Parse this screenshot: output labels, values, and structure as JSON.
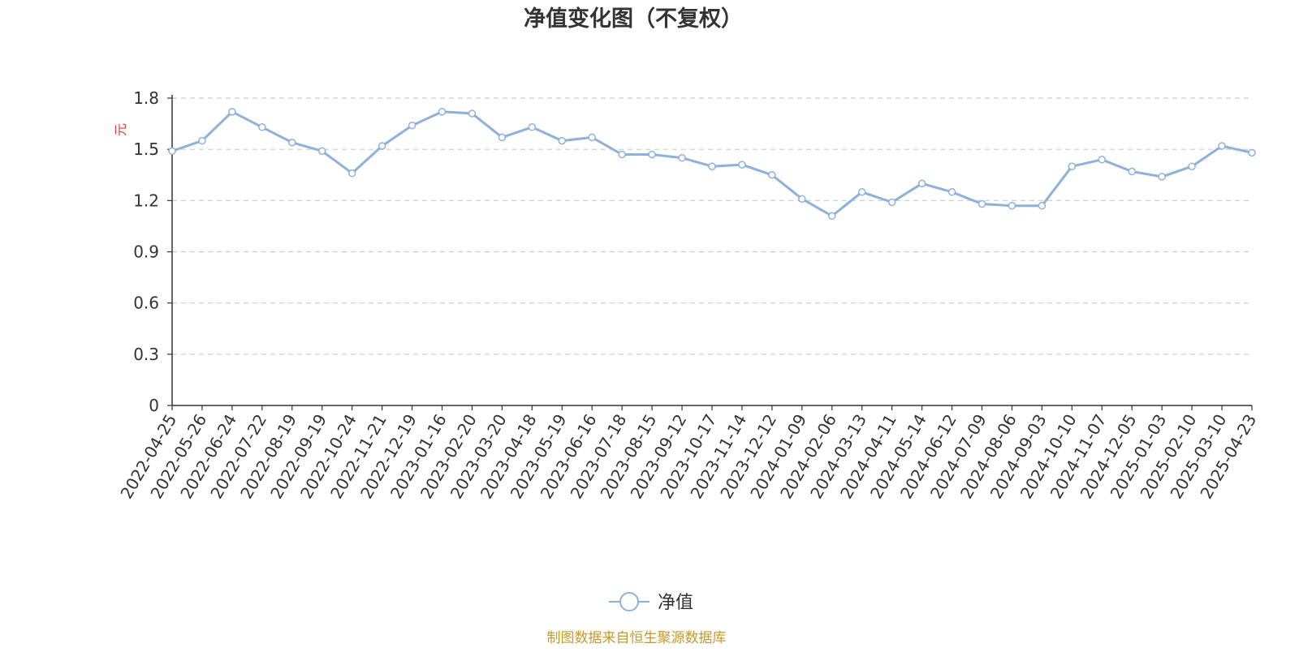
{
  "chart_data": {
    "type": "line",
    "title": "净值变化图（不复权）",
    "ylabel": "元",
    "xlabel": "",
    "ylim": [
      0,
      1.8
    ],
    "yticks": [
      0,
      0.3,
      0.6,
      0.9,
      1.2,
      1.5,
      1.8
    ],
    "ytick_labels": [
      "0",
      "0.3",
      "0.6",
      "0.9",
      "1.2",
      "1.5",
      "1.8"
    ],
    "grid": "horizontal dashed",
    "legend_position": "bottom-center",
    "categories": [
      "2022-04-25",
      "2022-05-26",
      "2022-06-24",
      "2022-07-22",
      "2022-08-19",
      "2022-09-19",
      "2022-10-24",
      "2022-11-21",
      "2022-12-19",
      "2023-01-16",
      "2023-02-20",
      "2023-03-20",
      "2023-04-18",
      "2023-05-19",
      "2023-06-16",
      "2023-07-18",
      "2023-08-15",
      "2023-09-12",
      "2023-10-17",
      "2023-11-14",
      "2023-12-12",
      "2024-01-09",
      "2024-02-06",
      "2024-03-13",
      "2024-04-11",
      "2024-05-14",
      "2024-06-12",
      "2024-07-09",
      "2024-08-06",
      "2024-09-03",
      "2024-10-10",
      "2024-11-07",
      "2024-12-05",
      "2025-01-03",
      "2025-02-10",
      "2025-03-10",
      "2025-04-23"
    ],
    "series": [
      {
        "name": "净值",
        "color": "#8eb0dc",
        "values": [
          1.49,
          1.55,
          1.72,
          1.63,
          1.54,
          1.49,
          1.36,
          1.52,
          1.64,
          1.72,
          1.71,
          1.57,
          1.63,
          1.55,
          1.57,
          1.47,
          1.47,
          1.45,
          1.4,
          1.41,
          1.35,
          1.21,
          1.11,
          1.25,
          1.19,
          1.3,
          1.25,
          1.18,
          1.17,
          1.17,
          1.4,
          1.44,
          1.37,
          1.34,
          1.4,
          1.52,
          1.48
        ]
      }
    ],
    "legend": [
      {
        "label": "净值",
        "color": "#8eb0dc"
      }
    ],
    "footer": "制图数据来自恒生聚源数据库"
  }
}
